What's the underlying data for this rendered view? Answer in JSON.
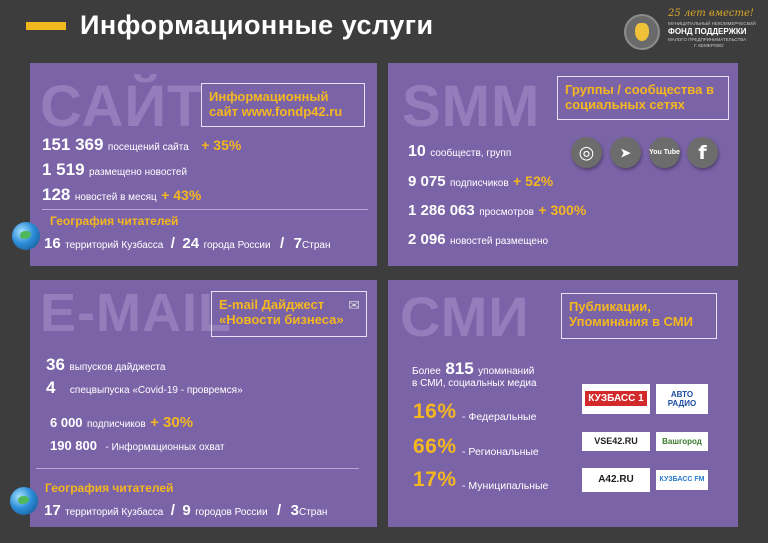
{
  "header": {
    "title": "Информационные  услуги",
    "logo": {
      "anniversary": "25 лет вместе!",
      "line1": "МУНИЦИПАЛЬНЫЙ НЕКОММЕРЧЕСКИЙ",
      "line2": "ФОНД ПОДДЕРЖКИ",
      "line3": "МАЛОГО ПРЕДПРИНИМАТЕЛЬСТВА",
      "line4": "Г. КЕМЕРОВО"
    }
  },
  "site": {
    "ghost": "САЙТ",
    "heading": "Информационный сайт www.fondp42.ru",
    "visits_value": "151 369",
    "visits_label": "посещений сайта",
    "visits_growth": "+ 35%",
    "news_value": "1 519",
    "news_label": "размещено новостей",
    "monthly_value": "128",
    "monthly_label": "новостей в месяц",
    "monthly_growth": "+ 43%",
    "geo_title": "География читателей",
    "geo_territories_value": "16",
    "geo_territories_label": "территорий Кузбасса",
    "geo_slash1": "/",
    "geo_cities_value": "24",
    "geo_cities_label": "города России",
    "geo_slash2": "/",
    "geo_countries_value": "7",
    "geo_countries_label": "Стран"
  },
  "smm": {
    "ghost": "SMM",
    "heading": "Группы / сообщества в социальных сетях",
    "communities_value": "10",
    "communities_label": "сообществ, групп",
    "subscribers_value": "9 075",
    "subscribers_label": "подписчиков",
    "subscribers_growth": "+ 52%",
    "views_value": "1 286 063",
    "views_label": "просмотров",
    "views_growth": "+ 300%",
    "posted_value": "2 096",
    "posted_label": "новостей размещено",
    "icons": [
      {
        "name": "instagram-icon",
        "glyph": "◎"
      },
      {
        "name": "telegram-icon",
        "glyph": "➤"
      },
      {
        "name": "youtube-icon",
        "glyph": "You Tube"
      },
      {
        "name": "facebook-icon",
        "glyph": "f"
      }
    ]
  },
  "email": {
    "ghost": "E-MAIL",
    "heading": "E-mail Дайджест «Новости бизнеса»",
    "issues_value": "36",
    "issues_label": "выпусков дайджеста",
    "special_value": "4",
    "special_label": "спецвыпуска  «Covid-19  - провремся»",
    "subs_value": "6 000",
    "subs_label": "подписчиков",
    "subs_growth": "+ 30%",
    "reach_value": "190 800",
    "reach_label": "- Информационных охват",
    "geo_title": "География читателей",
    "geo_territories_value": "17",
    "geo_territories_label": "территорий Кузбасса",
    "geo_slash1": "/",
    "geo_cities_value": "9",
    "geo_cities_label": "городов России",
    "geo_slash2": "/",
    "geo_countries_value": "3",
    "geo_countries_label": "Стран"
  },
  "smi": {
    "ghost": "СМИ",
    "heading": "Публикации, Упоминания в СМИ",
    "mentions_prefix": "Более",
    "mentions_value": "815",
    "mentions_label": "упоминаний",
    "mentions_line2": "в СМИ, социальных медиа",
    "federal_pct": "16%",
    "federal_label": "- Федеральные",
    "regional_pct": "66%",
    "regional_label": "- Региональные",
    "municipal_pct": "17%",
    "municipal_label": "- Муниципальные",
    "media": [
      {
        "name": "kuzbass1-logo",
        "text": "КУЗБАСС 1",
        "color": "#d22a2a"
      },
      {
        "name": "avtoradio-logo",
        "text": "АВТО РАДИО",
        "color": "#1c4fa0"
      },
      {
        "name": "vse42-logo",
        "text": "VSE42.RU",
        "color": "#222222"
      },
      {
        "name": "vashgorod-logo",
        "text": "Вашгород",
        "color": "#3a7a2d"
      },
      {
        "name": "a42-logo",
        "text": "А42.RU",
        "color": "#1d1d1d"
      },
      {
        "name": "kuzbass-fm-logo",
        "text": "КУЗБАСС FM",
        "color": "#2a79c9"
      }
    ]
  },
  "colors": {
    "background": "#3d3d3d",
    "panel": "#7b63a8",
    "accent": "#f3b71f"
  }
}
